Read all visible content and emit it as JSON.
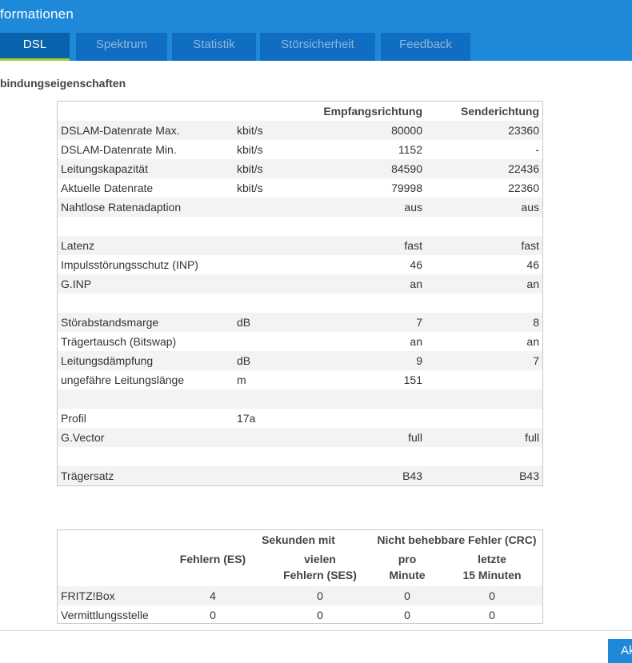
{
  "header": {
    "title": "formationen"
  },
  "tabs": [
    {
      "label": "DSL",
      "active": true
    },
    {
      "label": "Spektrum",
      "active": false
    },
    {
      "label": "Statistik",
      "active": false
    },
    {
      "label": "Störsicherheit",
      "active": false
    },
    {
      "label": "Feedback",
      "active": false
    }
  ],
  "section_title": "bindungseigenschaften",
  "props_table": {
    "headers": {
      "down": "Empfangsrichtung",
      "up": "Senderichtung"
    },
    "rows": [
      {
        "label": "DSLAM-Datenrate Max.",
        "unit": "kbit/s",
        "down": "80000",
        "up": "23360"
      },
      {
        "label": "DSLAM-Datenrate Min.",
        "unit": "kbit/s",
        "down": "1152",
        "up": "-"
      },
      {
        "label": "Leitungskapazität",
        "unit": "kbit/s",
        "down": "84590",
        "up": "22436"
      },
      {
        "label": "Aktuelle Datenrate",
        "unit": "kbit/s",
        "down": "79998",
        "up": "22360"
      },
      {
        "label": "Nahtlose Ratenadaption",
        "unit": "",
        "down": "aus",
        "up": "aus"
      },
      {
        "label": "",
        "unit": "",
        "down": "",
        "up": ""
      },
      {
        "label": "Latenz",
        "unit": "",
        "down": "fast",
        "up": "fast"
      },
      {
        "label": "Impulsstörungsschutz (INP)",
        "unit": "",
        "down": "46",
        "up": "46"
      },
      {
        "label": "G.INP",
        "unit": "",
        "down": "an",
        "up": "an"
      },
      {
        "label": "",
        "unit": "",
        "down": "",
        "up": ""
      },
      {
        "label": "Störabstandsmarge",
        "unit": "dB",
        "down": "7",
        "up": "8"
      },
      {
        "label": "Trägertausch (Bitswap)",
        "unit": "",
        "down": "an",
        "up": "an"
      },
      {
        "label": "Leitungsdämpfung",
        "unit": "dB",
        "down": "9",
        "up": "7"
      },
      {
        "label": "ungefähre Leitungslänge",
        "unit": "m",
        "down": "151",
        "up": ""
      },
      {
        "label": "",
        "unit": "",
        "down": "",
        "up": ""
      },
      {
        "label": "Profil",
        "unit": "17a",
        "down": "",
        "up": ""
      },
      {
        "label": "G.Vector",
        "unit": "",
        "down": "full",
        "up": "full"
      },
      {
        "label": "",
        "unit": "",
        "down": "",
        "up": ""
      },
      {
        "label": "Trägersatz",
        "unit": "",
        "down": "B43",
        "up": "B43"
      }
    ]
  },
  "error_table": {
    "group_seconds": "Sekunden mit",
    "group_crc": "Nicht behebbare Fehler (CRC)",
    "col_es_1": "Fehlern (ES)",
    "col_ses_1": "vielen",
    "col_ses_2": "Fehlern (SES)",
    "col_min_1": "pro",
    "col_min_2": "Minute",
    "col_15_1": "letzte",
    "col_15_2": "15 Minuten",
    "rows": [
      {
        "label": "FRITZ!Box",
        "es": "4",
        "ses": "0",
        "min": "0",
        "m15": "0"
      },
      {
        "label": "Vermittlungsstelle",
        "es": "0",
        "ses": "0",
        "min": "0",
        "m15": "0"
      }
    ]
  },
  "apply_button": "Ak"
}
